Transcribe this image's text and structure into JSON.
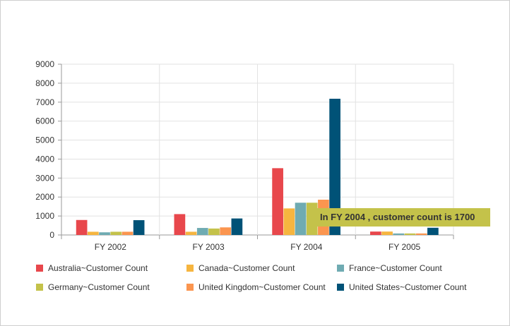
{
  "chart_data": {
    "type": "bar",
    "title": "",
    "xlabel": "",
    "ylabel": "",
    "ylim": [
      0,
      9000
    ],
    "yticks": [
      "0",
      "1000",
      "2000",
      "3000",
      "4000",
      "5000",
      "6000",
      "7000",
      "8000",
      "9000"
    ],
    "grid": true,
    "legend_position": "bottom",
    "categories": [
      "FY 2002",
      "FY 2003",
      "FY 2004",
      "FY 2005"
    ],
    "series": [
      {
        "name": "Australia~Customer Count",
        "color": "#e8474c",
        "values": [
          790,
          1100,
          3520,
          180
        ]
      },
      {
        "name": "Canada~Customer Count",
        "color": "#f6b53f",
        "values": [
          170,
          170,
          1400,
          180
        ]
      },
      {
        "name": "France~Customer Count",
        "color": "#6fabb2",
        "values": [
          140,
          370,
          1700,
          80
        ]
      },
      {
        "name": "Germany~Customer Count",
        "color": "#c4c24a",
        "values": [
          170,
          340,
          1700,
          80
        ]
      },
      {
        "name": "United Kingdom~Customer Count",
        "color": "#fb954f",
        "values": [
          170,
          400,
          1860,
          80
        ]
      },
      {
        "name": "United States~Customer Count",
        "color": "#005277",
        "values": [
          780,
          870,
          7180,
          380
        ]
      }
    ],
    "tooltip": {
      "text": "In  FY 2004 , customer count is  1700",
      "color": "#c4c24a"
    }
  }
}
